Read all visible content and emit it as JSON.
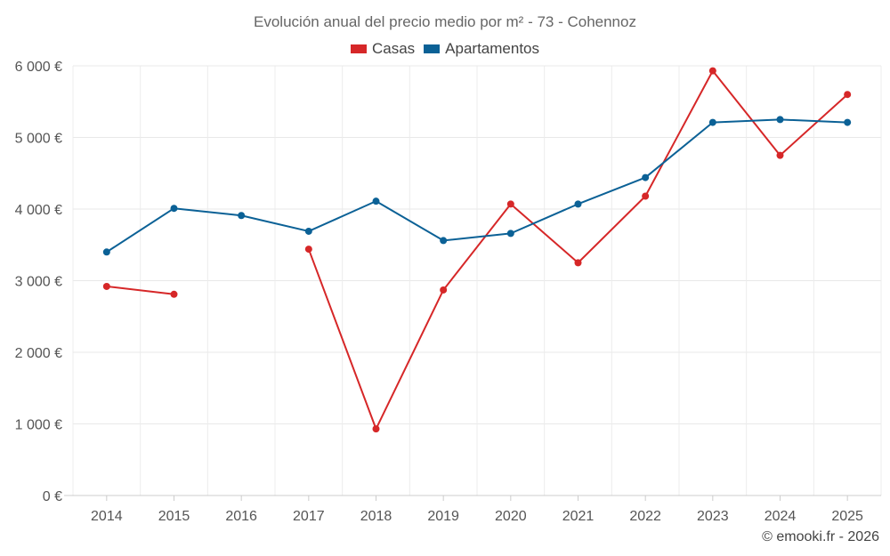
{
  "chart_data": {
    "type": "line",
    "title": "Evolución anual del precio medio por m² - 73 - Cohennoz",
    "categories": [
      "2014",
      "2015",
      "2016",
      "2017",
      "2018",
      "2019",
      "2020",
      "2021",
      "2022",
      "2023",
      "2024",
      "2025"
    ],
    "series": [
      {
        "name": "Casas",
        "color": "#d62728",
        "values": [
          2920,
          2810,
          null,
          3440,
          930,
          2870,
          4070,
          3250,
          4180,
          5930,
          4750,
          5600
        ]
      },
      {
        "name": "Apartamentos",
        "color": "#0b6196",
        "values": [
          3400,
          4010,
          3910,
          3690,
          4110,
          3560,
          3660,
          4070,
          4440,
          5210,
          5250,
          5210
        ]
      }
    ],
    "y_ticks": [
      "0 €",
      "1 000 €",
      "2 000 €",
      "3 000 €",
      "4 000 €",
      "5 000 €",
      "6 000 €"
    ],
    "ylim": [
      0,
      6000
    ],
    "grid": true,
    "legend_position": "top-center"
  },
  "credit": "© emooki.fr - 2026"
}
